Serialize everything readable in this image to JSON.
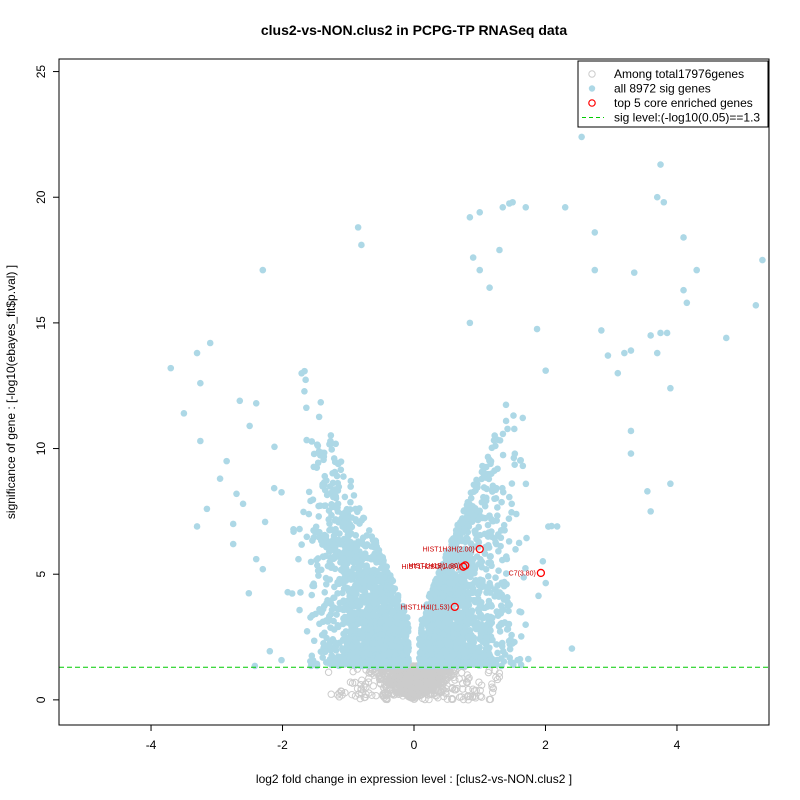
{
  "chart_data": {
    "type": "scatter",
    "title": "clus2-vs-NON.clus2 in PCPG-TP RNASeq data",
    "xlabel": "log2 fold change in expression level : [clus2-vs-NON.clus2 ]",
    "ylabel": "significance of gene : [-log10(ebayes_fit$p.val) ]",
    "xlim": [
      -5.4,
      5.4
    ],
    "ylim": [
      -1.0,
      25.5
    ],
    "xticks": [
      -4,
      -2,
      0,
      2,
      4
    ],
    "yticks": [
      0,
      5,
      10,
      15,
      20,
      25
    ],
    "sig_threshold": 1.3,
    "legend": {
      "position": "top-right",
      "entries": [
        {
          "label": "Among total17976genes",
          "marker": "open-circle",
          "color": "#cccccc"
        },
        {
          "label": "all 8972 sig genes",
          "marker": "filled-circle",
          "color": "#add8e6"
        },
        {
          "label": "top 5 core enriched genes",
          "marker": "open-circle",
          "color": "#ff0000"
        },
        {
          "label": "sig level:(-log10(0.05)==1.3",
          "marker": "dashed-line",
          "color": "#00cc00"
        }
      ]
    },
    "colors": {
      "nonsig": "#cccccc",
      "sig": "#add8e6",
      "core": "#ff0000",
      "core_label": "#cc0000",
      "threshold": "#00cc00"
    },
    "core_genes": [
      {
        "label": "HIST1H3H(2.00)",
        "x": 1.0,
        "y": 6.0
      },
      {
        "label": "HIST1H1B(1.80)",
        "x": 0.78,
        "y": 5.35
      },
      {
        "label": "HIST1H2BD(1.60)",
        "x": 0.75,
        "y": 5.3
      },
      {
        "label": "C7(3.80)",
        "x": 1.93,
        "y": 5.05
      },
      {
        "label": "HIST1H4I(1.53)",
        "x": 0.62,
        "y": 3.7
      }
    ],
    "outlier_sig_genes": [
      {
        "x": 5.3,
        "y": 17.5
      },
      {
        "x": 5.2,
        "y": 15.7
      },
      {
        "x": 4.75,
        "y": 14.4
      },
      {
        "x": 4.3,
        "y": 17.1
      },
      {
        "x": 4.1,
        "y": 18.4
      },
      {
        "x": 4.1,
        "y": 16.3
      },
      {
        "x": 4.15,
        "y": 15.8
      },
      {
        "x": 3.9,
        "y": 12.4
      },
      {
        "x": 3.9,
        "y": 8.6
      },
      {
        "x": 3.75,
        "y": 21.3
      },
      {
        "x": 3.7,
        "y": 20.0
      },
      {
        "x": 3.8,
        "y": 19.8
      },
      {
        "x": 3.75,
        "y": 14.6
      },
      {
        "x": 3.85,
        "y": 14.6
      },
      {
        "x": 3.6,
        "y": 14.5
      },
      {
        "x": 3.7,
        "y": 13.8
      },
      {
        "x": 3.55,
        "y": 8.3
      },
      {
        "x": 3.6,
        "y": 7.5
      },
      {
        "x": 3.35,
        "y": 17.0
      },
      {
        "x": 3.3,
        "y": 13.9
      },
      {
        "x": 3.2,
        "y": 13.8
      },
      {
        "x": 3.1,
        "y": 13.0
      },
      {
        "x": 3.3,
        "y": 10.7
      },
      {
        "x": 3.3,
        "y": 9.8
      },
      {
        "x": 2.85,
        "y": 14.7
      },
      {
        "x": 2.95,
        "y": 13.7
      },
      {
        "x": 2.75,
        "y": 18.6
      },
      {
        "x": 2.75,
        "y": 17.1
      },
      {
        "x": 2.55,
        "y": 22.4
      },
      {
        "x": 2.3,
        "y": 19.6
      },
      {
        "x": 1.7,
        "y": 19.6
      },
      {
        "x": 1.5,
        "y": 19.8
      },
      {
        "x": 1.45,
        "y": 19.75
      },
      {
        "x": 1.35,
        "y": 19.6
      },
      {
        "x": 1.3,
        "y": 17.9
      },
      {
        "x": 1.0,
        "y": 19.4
      },
      {
        "x": 0.85,
        "y": 19.2
      },
      {
        "x": 0.9,
        "y": 17.6
      },
      {
        "x": 1.0,
        "y": 17.1
      },
      {
        "x": 1.15,
        "y": 16.4
      },
      {
        "x": 0.85,
        "y": 15.0
      },
      {
        "x": -0.85,
        "y": 18.8
      },
      {
        "x": -0.8,
        "y": 18.1
      },
      {
        "x": -2.3,
        "y": 17.1
      },
      {
        "x": -3.1,
        "y": 14.2
      },
      {
        "x": -3.3,
        "y": 13.8
      },
      {
        "x": -3.7,
        "y": 13.2
      },
      {
        "x": -3.25,
        "y": 12.6
      },
      {
        "x": -3.5,
        "y": 11.4
      },
      {
        "x": -3.25,
        "y": 10.3
      },
      {
        "x": -2.65,
        "y": 11.9
      },
      {
        "x": -2.4,
        "y": 11.8
      },
      {
        "x": -2.5,
        "y": 10.9
      },
      {
        "x": -2.85,
        "y": 9.5
      },
      {
        "x": -2.95,
        "y": 8.8
      },
      {
        "x": -2.7,
        "y": 8.2
      },
      {
        "x": -2.6,
        "y": 7.8
      },
      {
        "x": -2.75,
        "y": 7.0
      },
      {
        "x": -3.15,
        "y": 7.6
      },
      {
        "x": -3.3,
        "y": 6.9
      },
      {
        "x": -2.75,
        "y": 6.2
      },
      {
        "x": -2.4,
        "y": 5.6
      },
      {
        "x": -2.3,
        "y": 5.2
      }
    ],
    "generated_cloud": {
      "note": "dense volcano cloud of remaining genes, distributed along the V-shape",
      "sig_count_drawn": 3200,
      "nonsig_count_drawn": 900
    }
  }
}
